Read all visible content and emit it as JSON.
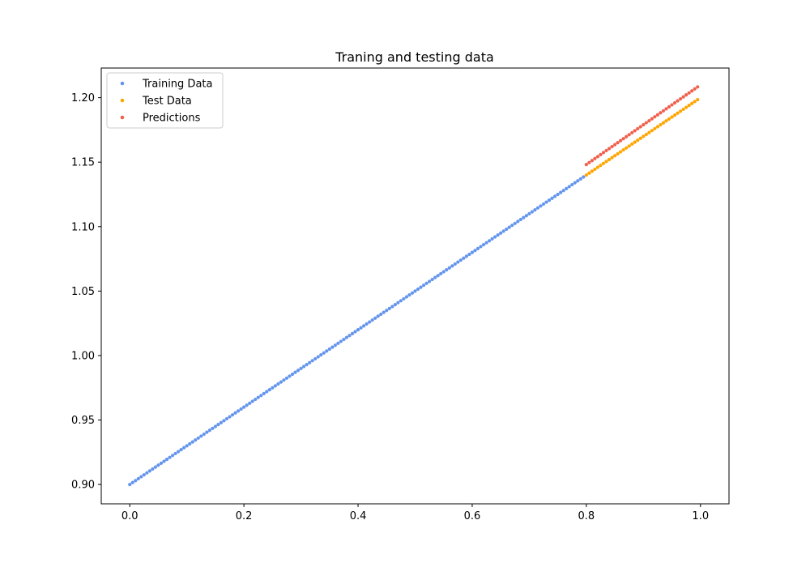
{
  "chart_data": {
    "type": "scatter",
    "title": "Traning and testing data",
    "xlabel": "",
    "ylabel": "",
    "xlim": [
      -0.05,
      1.05
    ],
    "ylim": [
      0.885,
      1.223
    ],
    "x_ticks": [
      0.0,
      0.2,
      0.4,
      0.6,
      0.8,
      1.0
    ],
    "x_tick_labels": [
      "0.0",
      "0.2",
      "0.4",
      "0.6",
      "0.8",
      "1.0"
    ],
    "y_ticks": [
      0.9,
      0.95,
      1.0,
      1.05,
      1.1,
      1.15,
      1.2
    ],
    "y_tick_labels": [
      "0.90",
      "0.95",
      "1.00",
      "1.05",
      "1.10",
      "1.15",
      "1.20"
    ],
    "grid": false,
    "legend_position": "top-left",
    "series": [
      {
        "name": "Training Data",
        "color": "#6495ed",
        "x_start": 0.0,
        "x_end": 0.795,
        "x_step": 0.005,
        "slope": 0.3,
        "intercept": 0.9
      },
      {
        "name": "Test Data",
        "color": "#ffa500",
        "x_start": 0.8,
        "x_end": 0.995,
        "x_step": 0.005,
        "slope": 0.3,
        "intercept": 0.9
      },
      {
        "name": "Predictions",
        "color": "#f0604d",
        "x_start": 0.8,
        "x_end": 0.995,
        "x_step": 0.005,
        "slope": 0.3088,
        "intercept": 0.9011
      }
    ]
  }
}
